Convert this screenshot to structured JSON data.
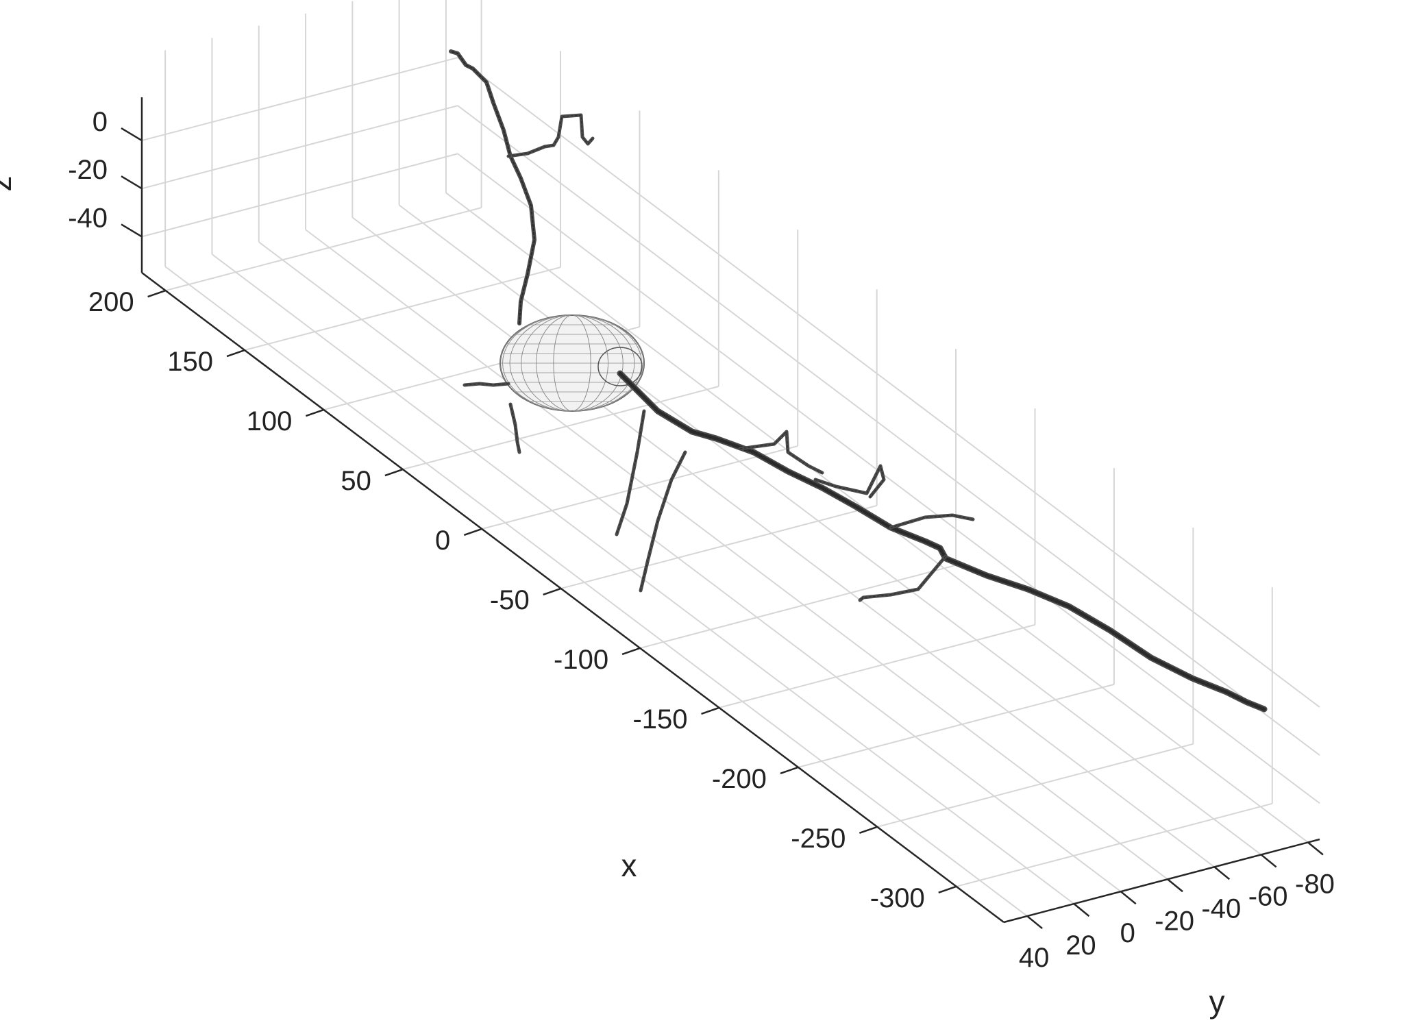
{
  "chart_data": {
    "type": "3d-surface-mesh",
    "xlabel": "x",
    "ylabel": "y",
    "zlabel": "z",
    "x_ticks": [
      200,
      150,
      100,
      50,
      0,
      -50,
      -100,
      -150,
      -200,
      -250,
      -300
    ],
    "y_ticks": [
      40,
      20,
      0,
      -20,
      -40,
      -60,
      -80
    ],
    "z_ticks": [
      0,
      -20,
      -40
    ],
    "xlim": [
      -330,
      215
    ],
    "ylim": [
      -85,
      50
    ],
    "zlim": [
      -55,
      10
    ],
    "grid": true,
    "colors": {
      "grid": "#d6d6d6",
      "axis": "#262626",
      "mesh": "#4a4a4a"
    }
  }
}
